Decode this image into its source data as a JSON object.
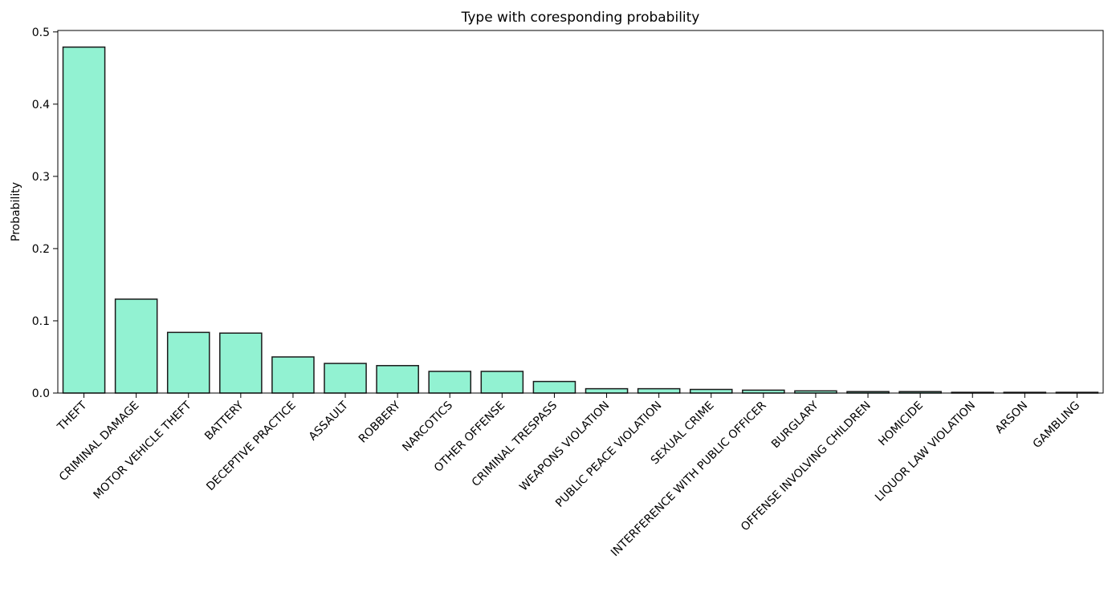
{
  "chart_data": {
    "type": "bar",
    "title": "Type with coresponding probability",
    "xlabel": "",
    "ylabel": "Probability",
    "categories": [
      "THEFT",
      "CRIMINAL DAMAGE",
      "MOTOR VEHICLE THEFT",
      "BATTERY",
      "DECEPTIVE PRACTICE",
      "ASSAULT",
      "ROBBERY",
      "NARCOTICS",
      "OTHER OFFENSE",
      "CRIMINAL TRESPASS",
      "WEAPONS VIOLATION",
      "PUBLIC PEACE VIOLATION",
      "SEXUAL CRIME",
      "INTERFERENCE WITH PUBLIC OFFICER",
      "BURGLARY",
      "OFFENSE INVOLVING CHILDREN",
      "HOMICIDE",
      "LIQUOR LAW VIOLATION",
      "ARSON",
      "GAMBLING"
    ],
    "values": [
      0.479,
      0.13,
      0.084,
      0.083,
      0.05,
      0.041,
      0.038,
      0.03,
      0.03,
      0.016,
      0.006,
      0.006,
      0.005,
      0.004,
      0.003,
      0.002,
      0.002,
      0.001,
      0.001,
      0.001
    ],
    "ylim": [
      0,
      0.502
    ],
    "yticks": [
      0.0,
      0.1,
      0.2,
      0.3,
      0.4,
      0.5
    ],
    "ytick_labels": [
      "0.0",
      "0.1",
      "0.2",
      "0.3",
      "0.4",
      "0.5"
    ],
    "grid": false,
    "legend": "none",
    "colors": {
      "bar_fill": "#92f2d2",
      "bar_edge": "#1a1a1a"
    }
  }
}
